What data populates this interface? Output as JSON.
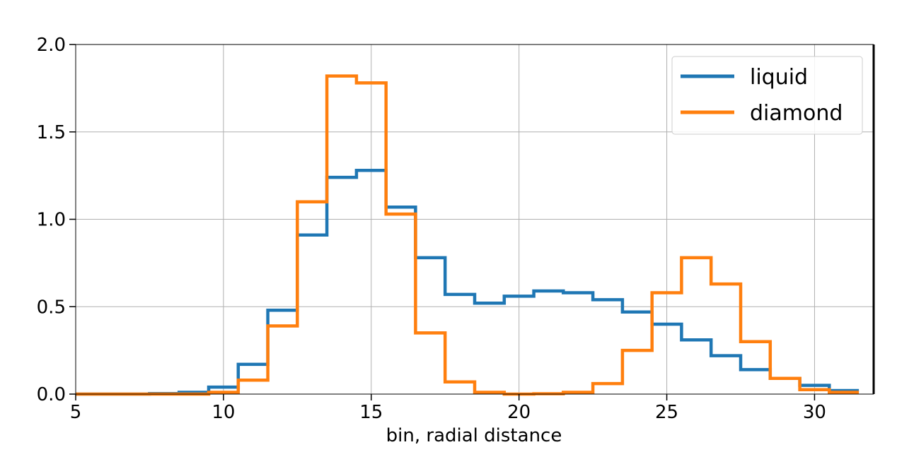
{
  "chart_data": {
    "type": "line",
    "drawstyle": "steps-mid",
    "title": "",
    "xlabel": "bin, radial distance",
    "ylabel": "",
    "xlim": [
      5,
      32
    ],
    "ylim": [
      0,
      2
    ],
    "xticks": [
      5,
      10,
      15,
      20,
      25,
      30
    ],
    "yticks": [
      0.0,
      0.5,
      1.0,
      1.5,
      2.0
    ],
    "xtick_labels": [
      "5",
      "10",
      "15",
      "20",
      "25",
      "30"
    ],
    "ytick_labels": [
      "0.0",
      "0.5",
      "1.0",
      "1.5",
      "2.0"
    ],
    "grid": true,
    "legend_position": "top-right",
    "x": [
      5,
      6,
      7,
      8,
      9,
      10,
      11,
      12,
      13,
      14,
      15,
      16,
      17,
      18,
      19,
      20,
      21,
      22,
      23,
      24,
      25,
      26,
      27,
      28,
      29,
      30,
      31
    ],
    "series": [
      {
        "name": "liquid",
        "color": "#1f77b4",
        "values": [
          0,
          0,
          0,
          0.003,
          0.01,
          0.04,
          0.17,
          0.48,
          0.91,
          1.24,
          1.28,
          1.07,
          0.78,
          0.57,
          0.52,
          0.56,
          0.59,
          0.58,
          0.54,
          0.47,
          0.4,
          0.31,
          0.22,
          0.14,
          0.09,
          0.05,
          0.02
        ]
      },
      {
        "name": "diamond",
        "color": "#ff7f0e",
        "values": [
          0,
          0,
          0,
          0,
          0,
          0.01,
          0.08,
          0.39,
          1.1,
          1.82,
          1.78,
          1.03,
          0.35,
          0.07,
          0.01,
          0,
          0.002,
          0.01,
          0.06,
          0.25,
          0.58,
          0.78,
          0.63,
          0.3,
          0.09,
          0.025,
          0.01
        ]
      }
    ]
  }
}
